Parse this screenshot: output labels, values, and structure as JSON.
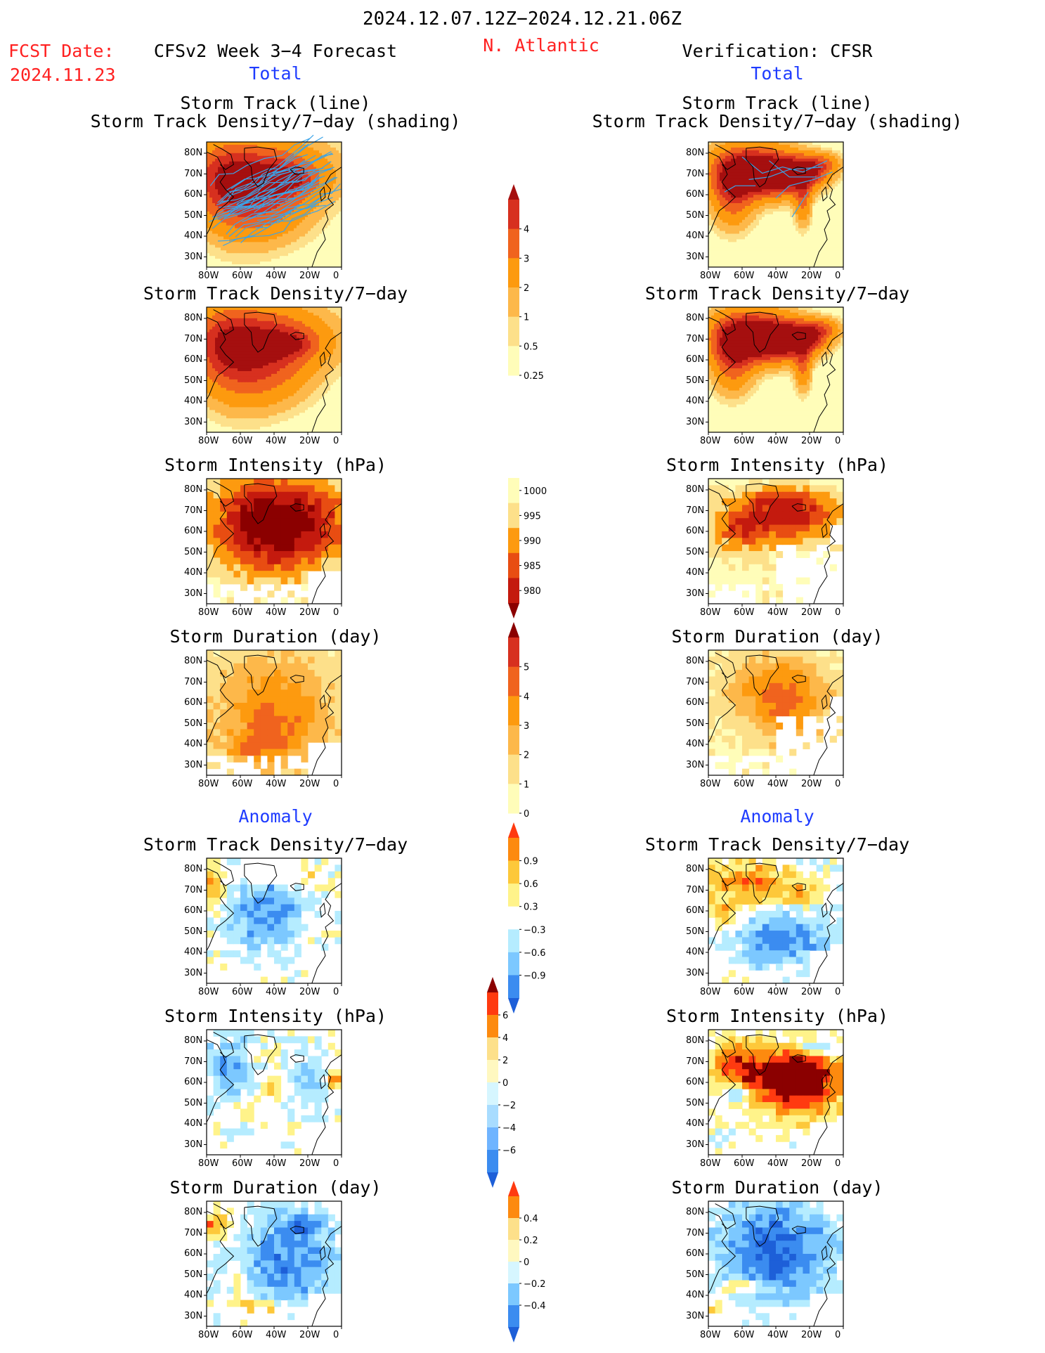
{
  "header": {
    "title": "2024.12.07.12Z−2024.12.21.06Z",
    "region": "N. Atlantic",
    "fcst_label": "FCST Date:",
    "fcst_date": "2024.11.23",
    "left_model": "CFSv2 Week 3−4 Forecast",
    "right_model": "Verification: CFSR",
    "left_total": "Total",
    "right_total": "Total",
    "left_anomaly": "Anomaly",
    "right_anomaly": "Anomaly"
  },
  "colors": {
    "title_red": "#ff2020",
    "section_blue": "#1f3cff",
    "track_line": "#3ba4e8"
  },
  "chart_data": [
    {
      "type": "heatmap",
      "column": "CFSv2 Week 3−4 Forecast",
      "row": "Total",
      "title_line1": "Storm Track (line)",
      "title": "Storm Track Density/7−day (shading)",
      "field": "density",
      "region": "na"
    },
    {
      "type": "heatmap",
      "column": "Verification: CFSR",
      "row": "Total",
      "title_line1": "Storm Track (line)",
      "title": "Storm Track Density/7−day (shading)",
      "field": "density",
      "region": "na"
    },
    {
      "type": "heatmap",
      "column": "CFSv2 Week 3−4 Forecast",
      "row": "Total",
      "title": "Storm Track Density/7−day",
      "field": "density"
    },
    {
      "type": "heatmap",
      "column": "Verification: CFSR",
      "row": "Total",
      "title": "Storm Track Density/7−day",
      "field": "density"
    },
    {
      "type": "heatmap",
      "column": "CFSv2 Week 3−4 Forecast",
      "row": "Total",
      "title": "Storm Intensity (hPa)",
      "field": "intensity"
    },
    {
      "type": "heatmap",
      "column": "Verification: CFSR",
      "row": "Total",
      "title": "Storm Intensity (hPa)",
      "field": "intensity"
    },
    {
      "type": "heatmap",
      "column": "CFSv2 Week 3−4 Forecast",
      "row": "Total",
      "title": "Storm Duration (day)",
      "field": "duration"
    },
    {
      "type": "heatmap",
      "column": "Verification: CFSR",
      "row": "Total",
      "title": "Storm Duration (day)",
      "field": "duration"
    },
    {
      "type": "heatmap",
      "column": "CFSv2 Week 3−4 Forecast",
      "row": "Anomaly",
      "title": "Storm Track Density/7−day",
      "field": "density_anom"
    },
    {
      "type": "heatmap",
      "column": "Verification: CFSR",
      "row": "Anomaly",
      "title": "Storm Track Density/7−day",
      "field": "density_anom"
    },
    {
      "type": "heatmap",
      "column": "CFSv2 Week 3−4 Forecast",
      "row": "Anomaly",
      "title": "Storm Intensity (hPa)",
      "field": "intensity_anom"
    },
    {
      "type": "heatmap",
      "column": "Verification: CFSR",
      "row": "Anomaly",
      "title": "Storm Intensity (hPa)",
      "field": "intensity_anom"
    },
    {
      "type": "heatmap",
      "column": "CFSv2 Week 3−4 Forecast",
      "row": "Anomaly",
      "title": "Storm Duration (day)",
      "field": "duration_anom"
    },
    {
      "type": "heatmap",
      "column": "Verification: CFSR",
      "row": "Anomaly",
      "title": "Storm Duration (day)",
      "field": "duration_anom"
    }
  ],
  "axes": {
    "y_ticks": [
      "80N",
      "70N",
      "60N",
      "50N",
      "40N",
      "30N"
    ],
    "x_ticks": [
      "80W",
      "60W",
      "40W",
      "20W",
      "0"
    ],
    "lat_range": [
      25,
      85
    ],
    "lon_range": [
      -80,
      0
    ]
  },
  "colorbars": [
    {
      "name": "density_total",
      "labels": [
        "4",
        "3",
        "2",
        "1",
        "0.5",
        "0.25"
      ],
      "colors": [
        "#a50f0f",
        "#d7301f",
        "#f0631e",
        "#fd9a0f",
        "#fdb84a",
        "#fde08a",
        "#fffdb9"
      ],
      "triangles": "top"
    },
    {
      "name": "intensity_total",
      "labels": [
        "1000",
        "995",
        "990",
        "985",
        "980"
      ],
      "colors": [
        "#fffdb9",
        "#fde08a",
        "#fd9a0f",
        "#e84d12",
        "#c41a0e",
        "#8b0000"
      ],
      "triangles": "bottom"
    },
    {
      "name": "duration_total",
      "labels": [
        "5",
        "4",
        "3",
        "2",
        "1",
        "0"
      ],
      "colors": [
        "#8b0000",
        "#d7301f",
        "#f0631e",
        "#fd9a0f",
        "#fdb84a",
        "#fde08a",
        "#fffdb9"
      ],
      "triangles": "top"
    },
    {
      "name": "density_anom",
      "labels": [
        "0.9",
        "0.6",
        "0.3",
        "−0.3",
        "−0.6",
        "−0.9"
      ],
      "colors": [
        "#ff3a10",
        "#fd8a0f",
        "#fdc83a",
        "#fff38a",
        "#ffffff",
        "#b5ecff",
        "#7cc8ff",
        "#3b8cf0",
        "#1d5fd8"
      ],
      "triangles": "both"
    },
    {
      "name": "intensity_anom",
      "labels": [
        "6",
        "4",
        "2",
        "0",
        "−2",
        "−4",
        "−6"
      ],
      "colors": [
        "#8b0000",
        "#ff3a10",
        "#fd8a0f",
        "#fde08a",
        "#fff8c0",
        "#d6f6ff",
        "#a8dcff",
        "#6fb4ff",
        "#3b8cf0",
        "#1d5fd8"
      ],
      "triangles": "both"
    },
    {
      "name": "duration_anom",
      "labels": [
        "0.4",
        "0.2",
        "0",
        "−0.2",
        "−0.4"
      ],
      "colors": [
        "#ff3a10",
        "#fd8a0f",
        "#fde08a",
        "#fff8c0",
        "#d6f6ff",
        "#7cc8ff",
        "#3b8cf0",
        "#1d5fd8"
      ],
      "triangles": "both"
    }
  ]
}
